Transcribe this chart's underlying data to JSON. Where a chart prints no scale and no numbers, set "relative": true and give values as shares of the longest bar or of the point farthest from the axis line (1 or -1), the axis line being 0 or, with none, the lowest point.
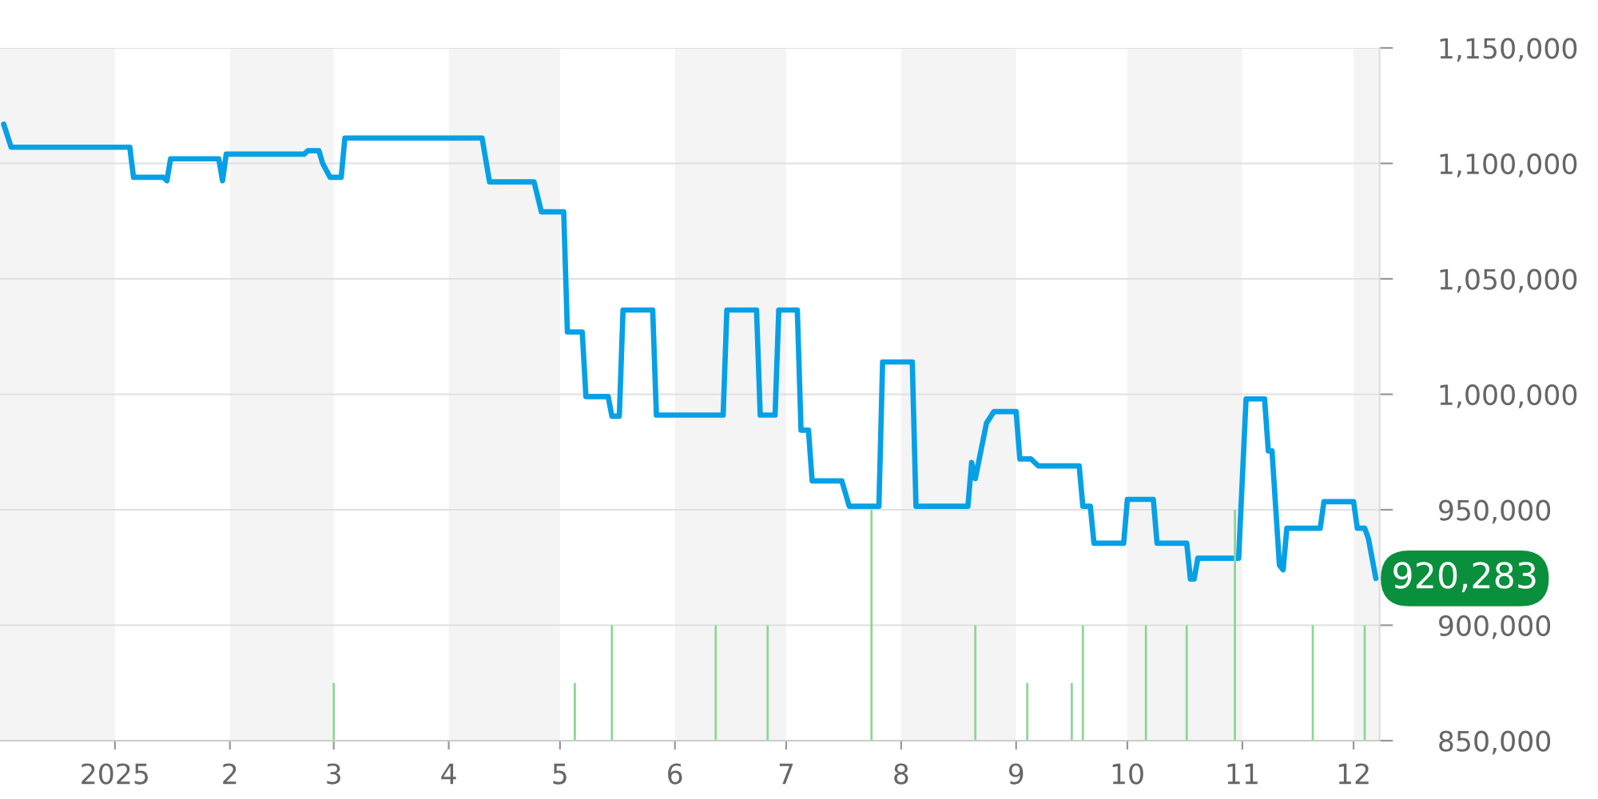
{
  "chart_data": [
    {
      "type": "line",
      "x": [
        "2024-12-02",
        "2024-12-04",
        "2025-01-05",
        "2025-01-06",
        "2025-01-14",
        "2025-01-15",
        "2025-01-16",
        "2025-01-29",
        "2025-01-30",
        "2025-01-31",
        "2025-02-21",
        "2025-02-22",
        "2025-02-25",
        "2025-02-26",
        "2025-02-28",
        "2025-03-03",
        "2025-03-04",
        "2025-04-10",
        "2025-04-12",
        "2025-04-24",
        "2025-04-26",
        "2025-05-02",
        "2025-05-03",
        "2025-05-07",
        "2025-05-08",
        "2025-05-14",
        "2025-05-15",
        "2025-05-17",
        "2025-05-18",
        "2025-05-26",
        "2025-05-27",
        "2025-06-14",
        "2025-06-15",
        "2025-06-23",
        "2025-06-24",
        "2025-06-28",
        "2025-06-29",
        "2025-07-04",
        "2025-07-05",
        "2025-07-07",
        "2025-07-08",
        "2025-07-16",
        "2025-07-18",
        "2025-07-26",
        "2025-07-27",
        "2025-08-04",
        "2025-08-05",
        "2025-08-19",
        "2025-08-20",
        "2025-08-21",
        "2025-08-24",
        "2025-08-26",
        "2025-09-01",
        "2025-09-02",
        "2025-09-05",
        "2025-09-07",
        "2025-09-18",
        "2025-09-19",
        "2025-09-21",
        "2025-09-22",
        "2025-09-30",
        "2025-10-01",
        "2025-10-08",
        "2025-10-09",
        "2025-10-17",
        "2025-10-18",
        "2025-10-19",
        "2025-10-20",
        "2025-10-31",
        "2025-11-02",
        "2025-11-07",
        "2025-11-08",
        "2025-11-09",
        "2025-11-11",
        "2025-11-12",
        "2025-11-13",
        "2025-11-22",
        "2025-11-23",
        "2025-12-01",
        "2025-12-02",
        "2025-12-04",
        "2025-12-05",
        "2025-12-07"
      ],
      "series": [
        {
          "color": "#06a0e6",
          "values": [
            1117000,
            1107000,
            1107000,
            1094000,
            1094000,
            1092500,
            1102000,
            1102000,
            1092500,
            1104000,
            1104000,
            1105500,
            1105500,
            1100000,
            1094000,
            1094000,
            1111000,
            1111000,
            1092000,
            1092000,
            1079000,
            1079000,
            1027000,
            1027000,
            999000,
            999000,
            990500,
            990500,
            1036500,
            1036500,
            991000,
            991000,
            1036500,
            1036500,
            991000,
            991000,
            1036500,
            1036500,
            984500,
            984500,
            962500,
            962500,
            951500,
            951500,
            1014000,
            1014000,
            951500,
            951500,
            970500,
            963500,
            987500,
            992500,
            992500,
            972000,
            972000,
            969000,
            969000,
            951500,
            951500,
            935500,
            935500,
            954500,
            954500,
            935500,
            935500,
            920000,
            920000,
            929000,
            929000,
            998000,
            998000,
            975500,
            975500,
            926000,
            924000,
            942000,
            942000,
            953500,
            953500,
            942000,
            942000,
            937500,
            920283
          ]
        }
      ],
      "xlim": [
        "2024-12-01",
        "2025-12-08"
      ],
      "xticks": [
        {
          "value": "2025-01-01",
          "label": "2025"
        },
        {
          "value": "2025-02-01",
          "label": "2"
        },
        {
          "value": "2025-03-01",
          "label": "3"
        },
        {
          "value": "2025-04-01",
          "label": "4"
        },
        {
          "value": "2025-05-01",
          "label": "5"
        },
        {
          "value": "2025-06-01",
          "label": "6"
        },
        {
          "value": "2025-07-01",
          "label": "7"
        },
        {
          "value": "2025-08-01",
          "label": "8"
        },
        {
          "value": "2025-09-01",
          "label": "9"
        },
        {
          "value": "2025-10-01",
          "label": "10"
        },
        {
          "value": "2025-11-01",
          "label": "11"
        },
        {
          "value": "2025-12-01",
          "label": "12"
        }
      ],
      "ylim": [
        850000,
        1150000
      ],
      "yticks": [
        {
          "value": 850000,
          "label": "850,000"
        },
        {
          "value": 900000,
          "label": "900,000"
        },
        {
          "value": 950000,
          "label": "950,000"
        },
        {
          "value": 1000000,
          "label": "1,000,000"
        },
        {
          "value": 1050000,
          "label": "1,050,000"
        },
        {
          "value": 1100000,
          "label": "1,100,000"
        },
        {
          "value": 1150000,
          "label": "1,150,000"
        }
      ],
      "grid": "y",
      "bands": [
        {
          "axis": "x",
          "from": "2024-12-01",
          "to": "2025-01-01",
          "color": "#f4f4f4"
        },
        {
          "axis": "x",
          "from": "2025-02-01",
          "to": "2025-03-01",
          "color": "#f4f4f4"
        },
        {
          "axis": "x",
          "from": "2025-04-01",
          "to": "2025-05-01",
          "color": "#f4f4f4"
        },
        {
          "axis": "x",
          "from": "2025-06-01",
          "to": "2025-07-01",
          "color": "#f4f4f4"
        },
        {
          "axis": "x",
          "from": "2025-08-01",
          "to": "2025-09-01",
          "color": "#f4f4f4"
        },
        {
          "axis": "x",
          "from": "2025-10-01",
          "to": "2025-11-01",
          "color": "#f4f4f4"
        },
        {
          "axis": "x",
          "from": "2025-12-01",
          "to": "2025-12-08",
          "color": "#f4f4f4"
        }
      ],
      "annotations": [
        {
          "text": "920,283",
          "x": "2025-12-07",
          "y": 920283
        }
      ]
    },
    {
      "type": "bar",
      "relative": true,
      "color": "#8fd694",
      "x": [
        "2025-03-01",
        "2025-05-05",
        "2025-05-15",
        "2025-06-12",
        "2025-06-26",
        "2025-07-24",
        "2025-08-21",
        "2025-09-04",
        "2025-09-16",
        "2025-09-19",
        "2025-10-06",
        "2025-10-17",
        "2025-10-30",
        "2025-11-20",
        "2025-12-04"
      ],
      "values": [
        0.25,
        0.25,
        0.5,
        0.5,
        0.5,
        1,
        0.5,
        0.25,
        0.25,
        0.5,
        0.5,
        0.5,
        1,
        0.5,
        0.5
      ],
      "xlim": [
        "2024-12-01",
        "2025-12-08"
      ],
      "tick_labels": false
    }
  ]
}
